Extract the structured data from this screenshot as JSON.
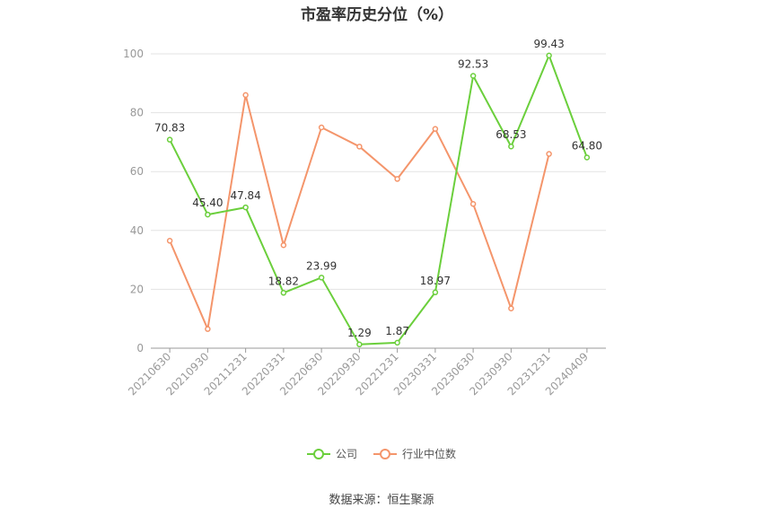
{
  "chart_data": {
    "type": "line",
    "title": "市盈率历史分位（%）",
    "categories": [
      "20210630",
      "20210930",
      "20211231",
      "20220331",
      "20220630",
      "20220930",
      "20221231",
      "20230331",
      "20230630",
      "20230930",
      "20231231",
      "20240409"
    ],
    "ylim": [
      0,
      100
    ],
    "yticks": [
      0,
      20,
      40,
      60,
      80,
      100
    ],
    "grid": true,
    "legend_position": "bottom",
    "series": [
      {
        "name": "公司",
        "color": "#6bcf3c",
        "values": [
          70.83,
          45.4,
          47.84,
          18.82,
          23.99,
          1.29,
          1.87,
          18.97,
          92.53,
          68.53,
          99.43,
          64.8
        ],
        "labels": [
          "70.83",
          "45.40",
          "47.84",
          "18.82",
          "23.99",
          "1.29",
          "1.87",
          "18.97",
          "92.53",
          "68.53",
          "99.43",
          "64.80"
        ]
      },
      {
        "name": "行业中位数",
        "color": "#f4956b",
        "values": [
          36.5,
          6.5,
          86,
          35,
          75,
          68.5,
          57.5,
          74.5,
          49,
          13.5,
          66,
          null
        ]
      }
    ]
  },
  "source": "数据来源：恒生聚源"
}
